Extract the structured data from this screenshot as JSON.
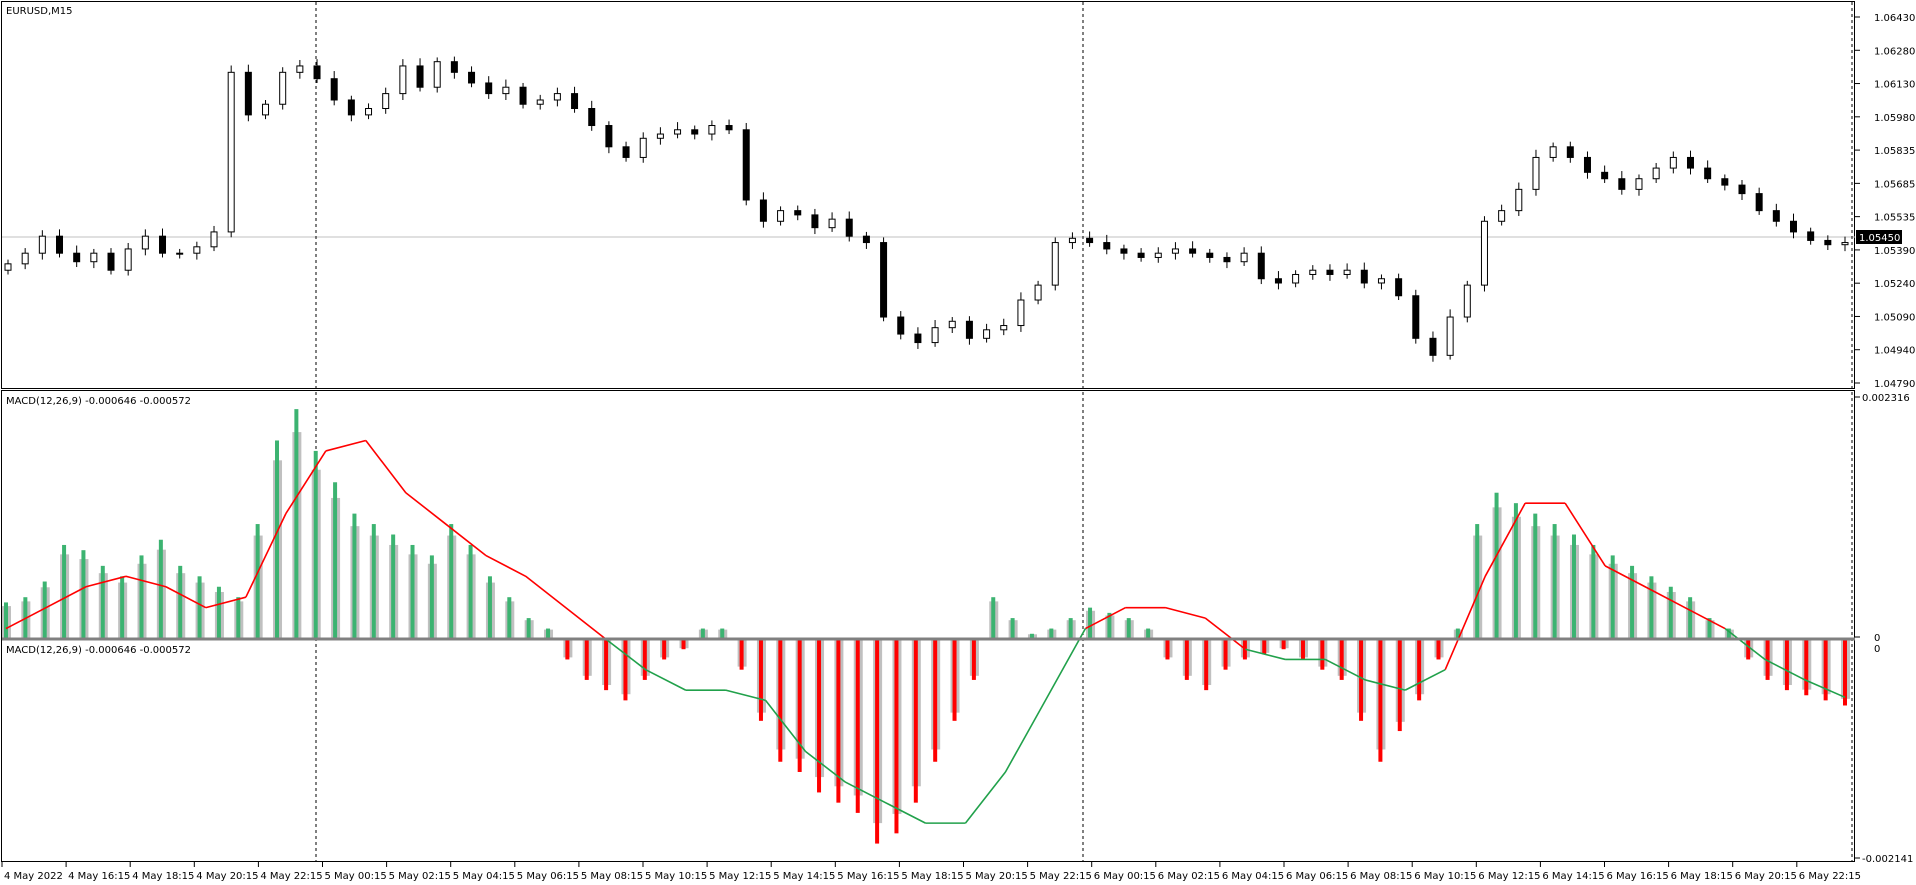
{
  "chart_window": {
    "symbol_label": "EURUSD,M15",
    "current_price_label": "1.05450"
  },
  "price_axis": {
    "ticks": [
      "1.06430",
      "1.06280",
      "1.06130",
      "1.05980",
      "1.05835",
      "1.05685",
      "1.05535",
      "1.05390",
      "1.05240",
      "1.05090",
      "1.04940",
      "1.04790"
    ]
  },
  "macd_panel": {
    "label": "MACD(12,26,9) -0.000646 -0.000572",
    "axis_top": "0.002316",
    "axis_zero": "0",
    "axis_bottom": "-0.002141"
  },
  "macd_panel_overlay": {
    "label": "MACD(12,26,9) -0.000646 -0.000572",
    "axis_zero": "0"
  },
  "time_axis": {
    "labels": [
      "4 May 2022",
      "4 May 16:15",
      "4 May 18:15",
      "4 May 20:15",
      "4 May 22:15",
      "5 May 00:15",
      "5 May 02:15",
      "5 May 04:15",
      "5 May 06:15",
      "5 May 08:15",
      "5 May 10:15",
      "5 May 12:15",
      "5 May 14:15",
      "5 May 16:15",
      "5 May 18:15",
      "5 May 20:15",
      "5 May 22:15",
      "6 May 00:15",
      "6 May 02:15",
      "6 May 04:15",
      "6 May 06:15",
      "6 May 08:15",
      "6 May 10:15",
      "6 May 12:15",
      "6 May 14:15",
      "6 May 16:15",
      "6 May 18:15",
      "6 May 20:15",
      "6 May 22:15"
    ]
  },
  "colors": {
    "bull_body": "#ffffff",
    "bear_body": "#000000",
    "macd_positive": "#3cb371",
    "macd_negative": "#ff0000",
    "signal_line_up": "#ff0000",
    "signal_line_down": "#21a14b",
    "shadow_bars": "#c0c0c0",
    "bid_line": "#c0c0c0"
  },
  "chart_data": [
    {
      "type": "candlestick",
      "title": "EURUSD,M15",
      "ylim": [
        1.0479,
        1.0651
      ],
      "current_price": 1.0545,
      "x": [
        "4 May 2022",
        "4 May 16:15",
        "4 May 18:15",
        "4 May 20:15",
        "4 May 22:15",
        "5 May 00:15",
        "5 May 02:15",
        "5 May 04:15",
        "5 May 06:15",
        "5 May 08:15",
        "5 May 10:15",
        "5 May 12:15",
        "5 May 14:15",
        "5 May 16:15",
        "5 May 18:15",
        "5 May 20:15",
        "5 May 22:15",
        "6 May 00:15",
        "6 May 02:15",
        "6 May 04:15",
        "6 May 06:15",
        "6 May 08:15",
        "6 May 10:15",
        "6 May 12:15",
        "6 May 14:15",
        "6 May 16:15",
        "6 May 18:15",
        "6 May 20:15",
        "6 May 22:15"
      ],
      "close_trace": [
        1.0535,
        1.054,
        1.0548,
        1.054,
        1.0536,
        1.054,
        1.0532,
        1.0542,
        1.0548,
        1.054,
        1.054,
        1.0543,
        1.055,
        1.0625,
        1.0605,
        1.061,
        1.0625,
        1.0628,
        1.0622,
        1.0612,
        1.0605,
        1.0608,
        1.0615,
        1.0628,
        1.0618,
        1.063,
        1.0625,
        1.062,
        1.0615,
        1.0618,
        1.061,
        1.0612,
        1.0615,
        1.0608,
        1.06,
        1.059,
        1.0585,
        1.0594,
        1.0596,
        1.0598,
        1.0596,
        1.06,
        1.0598,
        1.0565,
        1.0555,
        1.056,
        1.0558,
        1.0552,
        1.0556,
        1.0548,
        1.0545,
        1.051,
        1.0502,
        1.0498,
        1.0505,
        1.0508,
        1.05,
        1.0504,
        1.0506,
        1.0518,
        1.0525,
        1.0545,
        1.0547,
        1.0545,
        1.0542,
        1.054,
        1.0538,
        1.054,
        1.0542,
        1.054,
        1.0538,
        1.0536,
        1.054,
        1.0528,
        1.0526,
        1.053,
        1.0532,
        1.053,
        1.0532,
        1.0526,
        1.0528,
        1.052,
        1.05,
        1.0492,
        1.051,
        1.0525,
        1.0555,
        1.056,
        1.057,
        1.0585,
        1.059,
        1.0585,
        1.0578,
        1.0575,
        1.057,
        1.0575,
        1.058,
        1.0585,
        1.058,
        1.0575,
        1.0572,
        1.0568,
        1.056,
        1.0555,
        1.055,
        1.0546,
        1.0544,
        1.0545
      ]
    },
    {
      "type": "bar",
      "title": "MACD(12,26,9) -0.000646 -0.000572",
      "ylim": [
        -0.002141,
        0.002316
      ],
      "series": [
        {
          "name": "MACD",
          "values": [
            0.00035,
            0.0004,
            0.00055,
            0.0009,
            0.00085,
            0.0007,
            0.0006,
            0.0008,
            0.00095,
            0.0007,
            0.0006,
            0.0005,
            0.0004,
            0.0011,
            0.0019,
            0.0022,
            0.0018,
            0.0015,
            0.0012,
            0.0011,
            0.001,
            0.0009,
            0.0008,
            0.0011,
            0.0009,
            0.0006,
            0.0004,
            0.0002,
            0.0001,
            -0.0002,
            -0.0004,
            -0.0005,
            -0.0006,
            -0.0004,
            -0.0002,
            -0.0001,
            0.0001,
            0.0001,
            -0.0003,
            -0.0008,
            -0.0012,
            -0.0013,
            -0.0015,
            -0.0016,
            -0.0017,
            -0.002,
            -0.0019,
            -0.0016,
            -0.0012,
            -0.0008,
            -0.0004,
            0.0004,
            0.0002,
            5e-05,
            0.0001,
            0.0002,
            0.0003,
            0.00025,
            0.0002,
            0.0001,
            -0.0002,
            -0.0004,
            -0.0005,
            -0.0003,
            -0.0002,
            -0.00015,
            -0.0001,
            -0.0002,
            -0.0003,
            -0.0004,
            -0.0008,
            -0.0012,
            -0.0009,
            -0.0006,
            -0.0002,
            0.0001,
            0.0011,
            0.0014,
            0.0013,
            0.0012,
            0.0011,
            0.001,
            0.0009,
            0.0008,
            0.0007,
            0.0006,
            0.0005,
            0.0004,
            0.0002,
            0.0001,
            -0.0002,
            -0.0004,
            -0.0005,
            -0.00055,
            -0.0006,
            -0.00065
          ]
        },
        {
          "name": "Signal",
          "values": [
            0.0001,
            0.0003,
            0.0005,
            0.0006,
            0.0005,
            0.0003,
            0.0004,
            0.0012,
            0.0018,
            0.0019,
            0.0014,
            0.0011,
            0.0008,
            0.0006,
            0.0003,
            0.0,
            -0.0003,
            -0.0005,
            -0.0005,
            -0.0006,
            -0.0011,
            -0.0014,
            -0.0016,
            -0.0018,
            -0.0018,
            -0.0013,
            -0.0006,
            0.0001,
            0.0003,
            0.0003,
            0.0002,
            -0.0001,
            -0.0002,
            -0.0002,
            -0.0004,
            -0.0005,
            -0.0003,
            0.0006,
            0.0013,
            0.0013,
            0.0007,
            0.0005,
            0.0003,
            0.0001,
            -0.0002,
            -0.0004,
            -0.00057
          ]
        }
      ]
    }
  ]
}
